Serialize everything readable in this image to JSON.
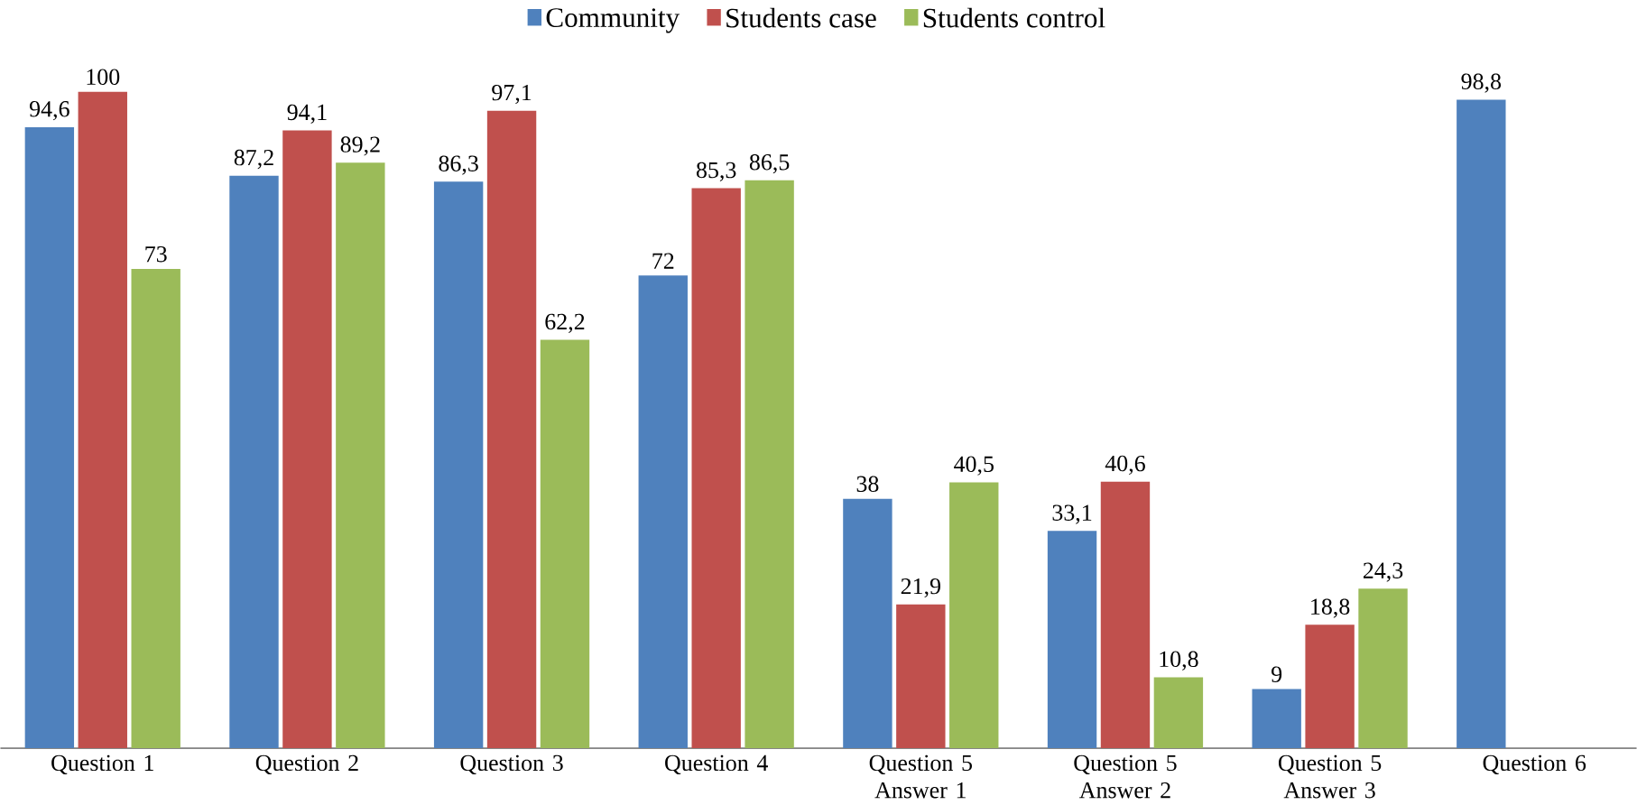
{
  "chart_data": {
    "type": "bar",
    "categories": [
      "Question 1",
      "Question 2",
      "Question 3",
      "Question 4",
      "Question 5 Answer 1",
      "Question 5 Answer 2",
      "Question 5 Answer 3",
      "Question 6"
    ],
    "series": [
      {
        "name": "Community",
        "color": "#4f81bd",
        "values": [
          94.6,
          87.2,
          86.3,
          72,
          38,
          33.1,
          9,
          98.8
        ],
        "value_labels": [
          "94,6",
          "87,2",
          "86,3",
          "72",
          "38",
          "33,1",
          "9",
          "98,8"
        ]
      },
      {
        "name": "Students case",
        "color": "#c0504d",
        "values": [
          100,
          94.1,
          97.1,
          85.3,
          21.9,
          40.6,
          18.8,
          null
        ],
        "value_labels": [
          "100",
          "94,1",
          "97,1",
          "85,3",
          "21,9",
          "40,6",
          "18,8",
          null
        ]
      },
      {
        "name": "Students control",
        "color": "#9bbb59",
        "values": [
          73,
          89.2,
          62.2,
          86.5,
          40.5,
          10.8,
          24.3,
          null
        ],
        "value_labels": [
          "73",
          "89,2",
          "62,2",
          "86,5",
          "40,5",
          "10,8",
          "24,3",
          null
        ]
      }
    ],
    "legend": "top"
  }
}
